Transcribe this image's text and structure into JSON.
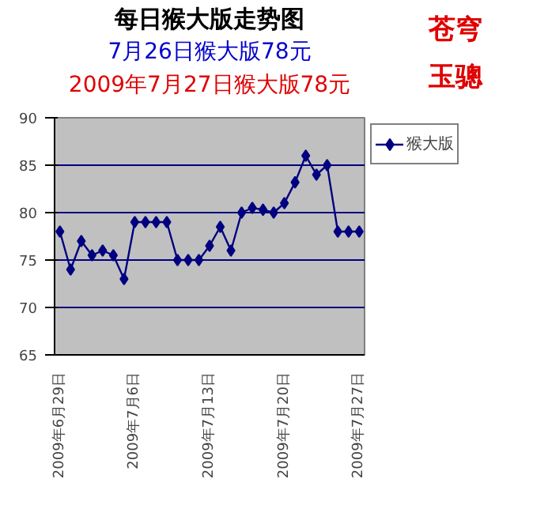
{
  "chart_data": {
    "type": "line",
    "title": "每日猴大版走势图",
    "subtitle": "7月26日猴大版78元",
    "annotations": [
      "2009年7月27日猴大版78元",
      "苍穹",
      "玉骢"
    ],
    "categories": [
      "2009年6月29日",
      null,
      null,
      null,
      null,
      null,
      null,
      "2009年7月6日",
      null,
      null,
      null,
      null,
      null,
      null,
      "2009年7月13日",
      null,
      null,
      null,
      null,
      null,
      null,
      "2009年7月20日",
      null,
      null,
      null,
      null,
      null,
      null,
      "2009年7月27日"
    ],
    "series": [
      {
        "name": "猴大版",
        "color": "#000080",
        "values": [
          78,
          74,
          77,
          75.5,
          76,
          75.5,
          73,
          79,
          79,
          79,
          79,
          75,
          75,
          75,
          76.5,
          78.5,
          76,
          80,
          80.5,
          80.3,
          80,
          81,
          83.2,
          86,
          84,
          85,
          78,
          78,
          78
        ]
      }
    ],
    "ylim": [
      65,
      90
    ],
    "yticks": [
      65,
      70,
      75,
      80,
      85,
      90
    ],
    "grid": "y",
    "legend": "right",
    "marker": "diamond",
    "line_style": "solid"
  }
}
